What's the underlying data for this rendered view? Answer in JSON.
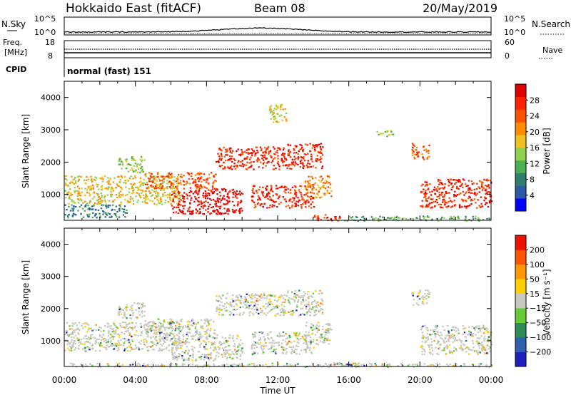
{
  "header": {
    "station": "Hokkaido East (fitACF)",
    "beam": "Beam 08",
    "date": "20/May/2019"
  },
  "top_panels": {
    "nsky_label": "N.Sky",
    "nsearch_label": "N.Search",
    "nsky_ticks": [
      "10^5",
      "10^0"
    ],
    "nsearch_ticks": [
      "10^5",
      "10^0"
    ],
    "freq_label_1": "Freq.",
    "freq_label_2": "[MHz]",
    "freq_ticks": [
      "18",
      "8"
    ],
    "nave_label": "Nave",
    "nave_ticks": [
      "60",
      "0"
    ],
    "cpid_label": "CPID",
    "cpid_text": "normal (fast) 151"
  },
  "time_axis": {
    "label": "Time UT",
    "ticks": [
      "00:00",
      "04:00",
      "08:00",
      "12:00",
      "16:00",
      "20:00",
      "00:00"
    ]
  },
  "chart_data": [
    {
      "type": "heatmap",
      "name": "power-panel",
      "ylabel": "Slant Range [km]",
      "yticks": [
        1000,
        2000,
        3000,
        4000
      ],
      "ylim": [
        200,
        4500
      ],
      "xlim_hours": [
        0,
        24
      ],
      "colorbar": {
        "label": "Power [dB]",
        "ticks": [
          "4",
          "8",
          "12",
          "16",
          "20",
          "24",
          "28"
        ],
        "colors": [
          "#0000ff",
          "#2a5aa8",
          "#2e7d6e",
          "#4caf50",
          "#8fd14f",
          "#f0c020",
          "#ff8c00",
          "#ff5000",
          "#ff2000",
          "#e00000"
        ]
      },
      "echo_regions": [
        {
          "t0": 0.0,
          "t1": 6.5,
          "r0": 700,
          "r1": 1600,
          "level": 5
        },
        {
          "t0": 0.0,
          "t1": 3.5,
          "r0": 300,
          "r1": 700,
          "level": 2
        },
        {
          "t0": 3.0,
          "t1": 4.5,
          "r0": 1700,
          "r1": 2200,
          "level": 4
        },
        {
          "t0": 4.5,
          "t1": 8.5,
          "r0": 1200,
          "r1": 1700,
          "level": 7
        },
        {
          "t0": 6.0,
          "t1": 10.0,
          "r0": 400,
          "r1": 1200,
          "level": 9
        },
        {
          "t0": 8.5,
          "t1": 12.5,
          "r0": 1800,
          "r1": 2500,
          "level": 8
        },
        {
          "t0": 10.5,
          "t1": 14.0,
          "r0": 600,
          "r1": 1300,
          "level": 8
        },
        {
          "t0": 12.5,
          "t1": 14.5,
          "r0": 1800,
          "r1": 2600,
          "level": 8
        },
        {
          "t0": 13.5,
          "t1": 15.0,
          "r0": 900,
          "r1": 1600,
          "level": 6
        },
        {
          "t0": 14.0,
          "t1": 15.5,
          "r0": 200,
          "r1": 400,
          "level": 8
        },
        {
          "t0": 17.5,
          "t1": 18.5,
          "r0": 2800,
          "r1": 3000,
          "level": 4
        },
        {
          "t0": 19.5,
          "t1": 20.5,
          "r0": 2100,
          "r1": 2600,
          "level": 7
        },
        {
          "t0": 20.0,
          "t1": 24.0,
          "r0": 600,
          "r1": 1500,
          "level": 8
        },
        {
          "t0": 15.5,
          "t1": 24.0,
          "r0": 200,
          "r1": 350,
          "level": 3
        },
        {
          "t0": 11.5,
          "t1": 12.5,
          "r0": 3200,
          "r1": 3800,
          "level": 5
        }
      ]
    },
    {
      "type": "heatmap",
      "name": "velocity-panel",
      "ylabel": "Slant Range [km]",
      "yticks": [
        1000,
        2000,
        3000,
        4000
      ],
      "ylim": [
        200,
        4500
      ],
      "xlim_hours": [
        0,
        24
      ],
      "colorbar": {
        "label": "Velocity [m s⁻¹]",
        "ticks": [
          "200",
          "100",
          "50",
          "15",
          "−15",
          "−50",
          "−100",
          "−200"
        ],
        "colors": [
          "#2020c0",
          "#2f5faf",
          "#2e8b57",
          "#66cc33",
          "#c8c8c0",
          "#ffd000",
          "#ff9900",
          "#ff5500",
          "#ee1100"
        ]
      },
      "echo_regions": [
        {
          "t0": 0.0,
          "t1": 6.5,
          "r0": 700,
          "r1": 1600,
          "level": 4
        },
        {
          "t0": 3.0,
          "t1": 4.5,
          "r0": 1700,
          "r1": 2200,
          "level": 4
        },
        {
          "t0": 4.5,
          "t1": 8.5,
          "r0": 1200,
          "r1": 1700,
          "level": 4
        },
        {
          "t0": 6.0,
          "t1": 10.0,
          "r0": 400,
          "r1": 1200,
          "level": 4
        },
        {
          "t0": 8.5,
          "t1": 12.5,
          "r0": 1800,
          "r1": 2500,
          "level": 4
        },
        {
          "t0": 10.5,
          "t1": 14.0,
          "r0": 600,
          "r1": 1300,
          "level": 4
        },
        {
          "t0": 12.5,
          "t1": 14.5,
          "r0": 1800,
          "r1": 2600,
          "level": 4
        },
        {
          "t0": 13.5,
          "t1": 15.0,
          "r0": 900,
          "r1": 1600,
          "level": 4
        },
        {
          "t0": 19.5,
          "t1": 20.5,
          "r0": 2100,
          "r1": 2600,
          "level": 4
        },
        {
          "t0": 20.0,
          "t1": 24.0,
          "r0": 600,
          "r1": 1500,
          "level": 4
        },
        {
          "t0": 0.0,
          "t1": 24.0,
          "r0": 200,
          "r1": 320,
          "level": 6
        },
        {
          "t0": 14.5,
          "t1": 17.0,
          "r0": 200,
          "r1": 350,
          "level": 3
        }
      ]
    }
  ]
}
